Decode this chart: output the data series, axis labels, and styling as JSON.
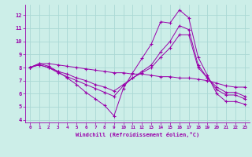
{
  "xlabel": "Windchill (Refroidissement éolien,°C)",
  "background_color": "#cceee8",
  "grid_color": "#aad8d4",
  "line_color": "#9900aa",
  "xlim": [
    -0.5,
    23.5
  ],
  "ylim": [
    3.8,
    12.8
  ],
  "yticks": [
    4,
    5,
    6,
    7,
    8,
    9,
    10,
    11,
    12
  ],
  "xticks": [
    0,
    1,
    2,
    3,
    4,
    5,
    6,
    7,
    8,
    9,
    10,
    11,
    12,
    13,
    14,
    15,
    16,
    17,
    18,
    19,
    20,
    21,
    22,
    23
  ],
  "series": [
    {
      "x": [
        0,
        1,
        2,
        3,
        4,
        5,
        6,
        7,
        8,
        9,
        10,
        11,
        12,
        13,
        14,
        15,
        16,
        17,
        18,
        19,
        20,
        21,
        22,
        23
      ],
      "y": [
        8.0,
        8.3,
        8.3,
        8.2,
        8.1,
        8.0,
        7.9,
        7.8,
        7.7,
        7.6,
        7.6,
        7.5,
        7.5,
        7.4,
        7.3,
        7.3,
        7.2,
        7.2,
        7.1,
        7.0,
        6.8,
        6.6,
        6.5,
        6.5
      ]
    },
    {
      "x": [
        0,
        1,
        2,
        3,
        4,
        5,
        6,
        7,
        8,
        9,
        10,
        11,
        12,
        13,
        14,
        15,
        16,
        17,
        18,
        19,
        20,
        21,
        22,
        23
      ],
      "y": [
        8.0,
        8.3,
        8.1,
        7.7,
        7.2,
        6.7,
        6.1,
        5.6,
        5.1,
        4.3,
        6.4,
        7.6,
        8.7,
        9.8,
        11.5,
        11.4,
        12.4,
        11.8,
        8.8,
        7.4,
        6.0,
        5.4,
        5.4,
        5.2
      ]
    },
    {
      "x": [
        0,
        1,
        2,
        3,
        4,
        5,
        6,
        7,
        8,
        9,
        10,
        11,
        12,
        13,
        14,
        15,
        16,
        17,
        18,
        19,
        20,
        21,
        22,
        23
      ],
      "y": [
        8.0,
        8.2,
        8.0,
        7.6,
        7.3,
        7.0,
        6.7,
        6.4,
        6.1,
        5.8,
        6.6,
        7.2,
        7.7,
        8.2,
        9.2,
        10.0,
        11.2,
        10.9,
        8.2,
        7.2,
        6.3,
        5.9,
        5.9,
        5.6
      ]
    },
    {
      "x": [
        0,
        1,
        2,
        3,
        4,
        5,
        6,
        7,
        8,
        9,
        10,
        11,
        12,
        13,
        14,
        15,
        16,
        17,
        18,
        19,
        20,
        21,
        22,
        23
      ],
      "y": [
        8.0,
        8.2,
        8.0,
        7.7,
        7.5,
        7.2,
        7.0,
        6.7,
        6.5,
        6.2,
        6.7,
        7.2,
        7.6,
        8.0,
        8.8,
        9.5,
        10.5,
        10.5,
        8.0,
        7.2,
        6.5,
        6.1,
        6.1,
        5.8
      ]
    }
  ]
}
